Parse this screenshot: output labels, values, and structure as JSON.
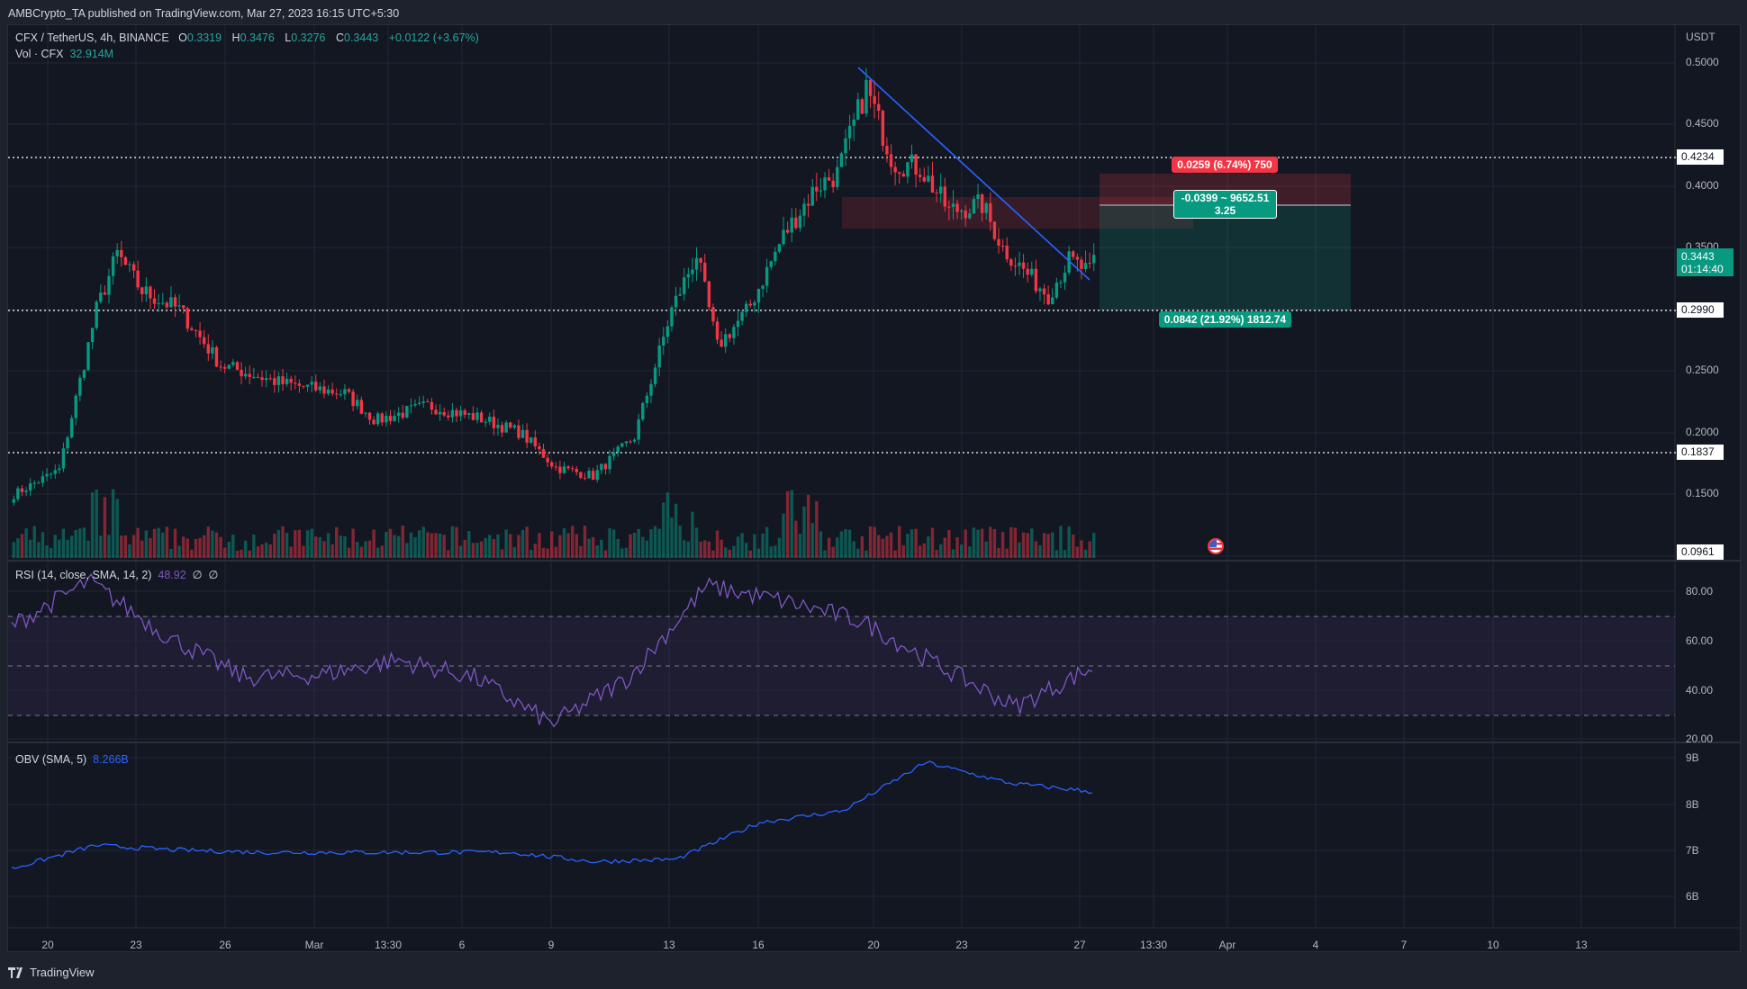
{
  "header": {
    "published": "AMBCrypto_TA published on TradingView.com, Mar 27, 2023 16:15 UTC+5:30"
  },
  "symbol_legend": {
    "symbol": "CFX / TetherUS, 4h, BINANCE",
    "open_label": "O",
    "open": "0.3319",
    "high_label": "H",
    "high": "0.3476",
    "low_label": "L",
    "low": "0.3276",
    "close_label": "C",
    "close": "0.3443",
    "change": "+0.0122 (+3.67%)",
    "vol_label": "Vol · CFX",
    "vol_value": "32.914M"
  },
  "price_axis": {
    "currency": "USDT",
    "ticks": [
      "0.5000",
      "0.4500",
      "0.4000",
      "0.3500",
      "0.2500",
      "0.2000",
      "0.1500"
    ],
    "levels": [
      "0.4234",
      "0.2990",
      "0.1837",
      "0.0961"
    ],
    "current_price": "0.3443",
    "countdown": "01:14:40"
  },
  "position_tool": {
    "stop_label": "0.0259 (6.74%) 750",
    "entry_label_line1": "-0.0399 ~ 9652.51",
    "entry_label_line2": "3.25",
    "target_label": "0.0842 (21.92%) 1812.74"
  },
  "rsi": {
    "title": "RSI (14, close, SMA, 14, 2)",
    "value": "48.92",
    "extra1": "∅",
    "extra2": "∅",
    "ticks": [
      "80.00",
      "60.00",
      "40.00",
      "20.00"
    ]
  },
  "obv": {
    "title": "OBV (SMA, 5)",
    "value": "8.266B",
    "ticks": [
      "9B",
      "8B",
      "7B",
      "6B"
    ]
  },
  "x_axis": {
    "labels": [
      "20",
      "23",
      "26",
      "Mar",
      "13:30",
      "6",
      "9",
      "13",
      "16",
      "20",
      "23",
      "27",
      "13:30",
      "Apr",
      "4",
      "7",
      "10",
      "13"
    ]
  },
  "footer": {
    "brand": "TradingView"
  },
  "colors": {
    "up": "#089981",
    "down": "#f23645",
    "rsi": "#7e57c2",
    "obv": "#2962ff",
    "trendline": "#2962ff",
    "background": "#131722"
  },
  "chart_data": [
    {
      "type": "candlestick",
      "title": "CFX / TetherUS, 4h, BINANCE",
      "ylabel": "USDT",
      "ylim": [
        0.09,
        0.51
      ],
      "x": [
        "Feb 18",
        "Feb 20",
        "Feb 23",
        "Feb 26",
        "Mar 1",
        "Mar 6",
        "Mar 9",
        "Mar 13",
        "Mar 16",
        "Mar 20",
        "Mar 23",
        "Mar 27"
      ],
      "close_approx": [
        0.15,
        0.33,
        0.3,
        0.24,
        0.225,
        0.215,
        0.175,
        0.19,
        0.3,
        0.47,
        0.39,
        0.344
      ],
      "horizontal_levels": [
        0.4234,
        0.299,
        0.1837
      ],
      "trendline": {
        "from": [
          "Mar 19",
          0.495
        ],
        "to": [
          "Mar 27",
          0.323
        ]
      },
      "supply_zone": [
        0.367,
        0.392
      ],
      "long_position": {
        "entry": 0.384,
        "stop": 0.4099,
        "target": 0.299
      },
      "last": {
        "open": 0.3319,
        "high": 0.3476,
        "low": 0.3276,
        "close": 0.3443,
        "volume": "32.914M"
      }
    },
    {
      "type": "line",
      "title": "RSI (14, close, SMA, 14, 2)",
      "ylim": [
        20,
        85
      ],
      "bands": [
        70,
        50,
        30
      ],
      "x": [
        "Feb 18",
        "Feb 20",
        "Feb 23",
        "Feb 26",
        "Mar 1",
        "Mar 6",
        "Mar 9",
        "Mar 11",
        "Mar 13",
        "Mar 15",
        "Mar 18",
        "Mar 20",
        "Mar 23",
        "Mar 25",
        "Mar 27"
      ],
      "values": [
        66,
        84,
        62,
        45,
        46,
        52,
        45,
        26,
        45,
        82,
        76,
        68,
        50,
        33,
        48.92
      ]
    },
    {
      "type": "line",
      "title": "OBV (SMA, 5)",
      "ylim": [
        5.5,
        9.2
      ],
      "unit": "B",
      "x": [
        "Feb 18",
        "Feb 20",
        "Feb 23",
        "Feb 26",
        "Mar 1",
        "Mar 6",
        "Mar 9",
        "Mar 11",
        "Mar 13",
        "Mar 16",
        "Mar 18",
        "Mar 20",
        "Mar 23",
        "Mar 27"
      ],
      "values": [
        6.6,
        7.1,
        7.0,
        6.95,
        6.95,
        6.95,
        6.95,
        6.75,
        6.8,
        7.6,
        7.85,
        8.9,
        8.45,
        8.266
      ]
    }
  ]
}
